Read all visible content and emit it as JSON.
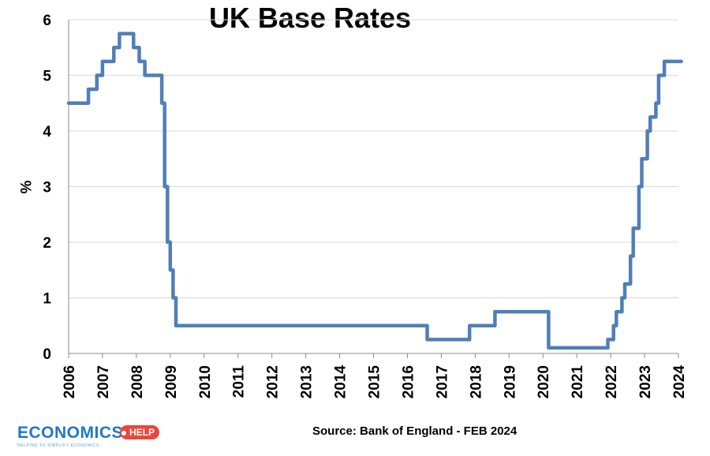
{
  "chart_data": {
    "type": "line",
    "title": "UK Base Rates",
    "xlabel": "",
    "ylabel": "%",
    "xlim": [
      "2006",
      "2024"
    ],
    "ylim": [
      0,
      6
    ],
    "grid": true,
    "x_ticks": [
      "2006",
      "2007",
      "2008",
      "2009",
      "2010",
      "2011",
      "2012",
      "2013",
      "2014",
      "2015",
      "2016",
      "2017",
      "2018",
      "2019",
      "2020",
      "2021",
      "2022",
      "2023",
      "2024"
    ],
    "y_ticks": [
      "0",
      "1",
      "2",
      "3",
      "4",
      "5",
      "6"
    ],
    "line_color": "#4f7fb8",
    "series": [
      {
        "x": [
          "2006-01",
          "2006-08",
          "2006-11",
          "2007-01",
          "2007-05",
          "2007-07",
          "2007-12",
          "2008-02",
          "2008-04",
          "2008-10",
          "2008-11",
          "2008-12",
          "2009-01",
          "2009-02",
          "2009-03",
          "2016-08",
          "2017-11",
          "2018-08",
          "2020-03",
          "2020-03",
          "2021-12",
          "2022-02",
          "2022-03",
          "2022-05",
          "2022-06",
          "2022-08",
          "2022-09",
          "2022-11",
          "2022-12",
          "2023-02",
          "2023-03",
          "2023-05",
          "2023-06",
          "2023-08",
          "2024-02"
        ],
        "values": [
          4.5,
          4.75,
          5.0,
          5.25,
          5.5,
          5.75,
          5.5,
          5.25,
          5.0,
          4.5,
          3.0,
          2.0,
          1.5,
          1.0,
          0.5,
          0.25,
          0.5,
          0.75,
          0.25,
          0.1,
          0.25,
          0.5,
          0.75,
          1.0,
          1.25,
          1.75,
          2.25,
          3.0,
          3.5,
          4.0,
          4.25,
          4.5,
          5.0,
          5.25,
          5.25
        ]
      }
    ]
  },
  "source": "Source: Bank of England - FEB 2024",
  "logo": {
    "text": "ECONOMICS",
    "badge": "HELP",
    "tagline": "HELPING TO SIMPLIFY ECONOMICS"
  }
}
